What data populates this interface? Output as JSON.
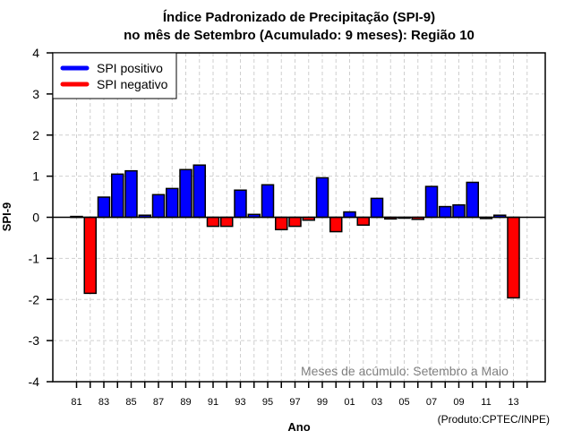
{
  "chart_data": {
    "type": "bar",
    "title": "Índice Padronizado de Precipitação (SPI-9)",
    "subtitle": "no mês de Setembro (Acumulado: 9 meses): Região 10",
    "xlabel": "Ano",
    "ylabel": "SPI-9",
    "ylim": [
      -4,
      4
    ],
    "yticks": [
      "4",
      "3",
      "2",
      "1",
      "0",
      "-1",
      "-2",
      "-3",
      "-4"
    ],
    "ytick_values": [
      4,
      3,
      2,
      1,
      0,
      -1,
      -2,
      -3,
      -4
    ],
    "xtick_labels": [
      "81",
      "83",
      "85",
      "87",
      "89",
      "91",
      "93",
      "95",
      "97",
      "99",
      "01",
      "03",
      "05",
      "07",
      "09",
      "11",
      "13"
    ],
    "grid": true,
    "legend_position": "top-left",
    "legend": [
      {
        "label": "SPI positivo",
        "color": "#0000ff"
      },
      {
        "label": "SPI negativo",
        "color": "#ff0000"
      }
    ],
    "positive_color": "#0000ff",
    "negative_color": "#ff0000",
    "annotation": "Meses de acúmulo: Setembro a Maio",
    "credit": "(Produto:CPTEC/INPE)",
    "years": [
      1981,
      1982,
      1983,
      1984,
      1985,
      1986,
      1987,
      1988,
      1989,
      1990,
      1991,
      1992,
      1993,
      1994,
      1995,
      1996,
      1997,
      1998,
      1999,
      2000,
      2001,
      2002,
      2003,
      2004,
      2005,
      2006,
      2007,
      2008,
      2009,
      2010,
      2011,
      2012,
      2013
    ],
    "values": [
      0.02,
      -1.85,
      0.49,
      1.05,
      1.13,
      0.05,
      0.55,
      0.7,
      1.16,
      1.27,
      -0.22,
      -0.22,
      0.66,
      0.07,
      0.79,
      -0.3,
      -0.22,
      -0.07,
      0.96,
      -0.35,
      0.13,
      -0.19,
      0.46,
      -0.04,
      0.0,
      -0.05,
      0.75,
      0.26,
      0.3,
      0.85,
      -0.03,
      0.05,
      -1.96
    ]
  }
}
